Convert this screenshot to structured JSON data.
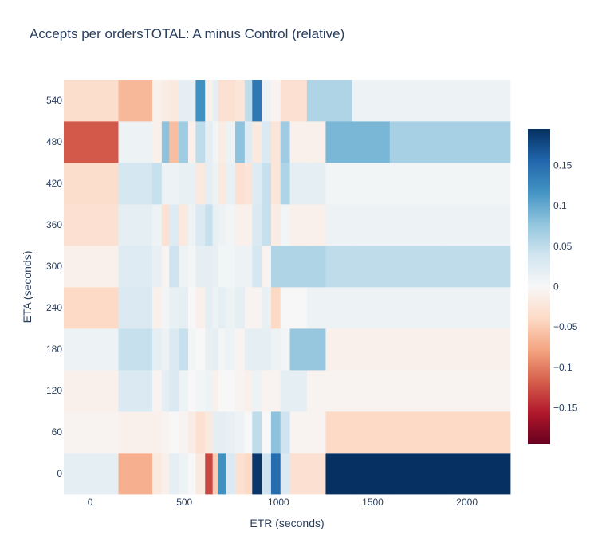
{
  "chart_data": {
    "type": "heatmap",
    "title": "Accepts per ordersTOTAL: A minus Control (relative)",
    "xlabel": "ETR (seconds)",
    "ylabel": "ETA (seconds)",
    "x_range": [
      -140,
      2230
    ],
    "x_ticks": [
      0,
      500,
      1000,
      1500,
      2000
    ],
    "y_ticks": [
      0,
      60,
      120,
      180,
      240,
      300,
      360,
      420,
      480,
      540
    ],
    "y_tick_labels": [
      "0",
      "60",
      "120",
      "180",
      "240",
      "300",
      "360",
      "420",
      "480",
      "540"
    ],
    "colorbar": {
      "range": [
        -0.195,
        0.195
      ],
      "ticks": [
        -0.15,
        -0.1,
        -0.05,
        0,
        0.05,
        0.1,
        0.15
      ],
      "tick_labels": [
        "−0.15",
        "−0.1",
        "−0.05",
        "0",
        "0.05",
        "0.1",
        "0.15"
      ],
      "colorscale": [
        "#67001f",
        "#b2182b",
        "#d6604d",
        "#f4a582",
        "#fddbc7",
        "#f7f7f7",
        "#d1e5f0",
        "#92c5de",
        "#4393c3",
        "#2166ac",
        "#053061"
      ]
    },
    "x_bin_edges": [
      -140,
      150,
      330,
      380,
      420,
      470,
      520,
      560,
      610,
      650,
      680,
      720,
      770,
      820,
      860,
      910,
      960,
      1010,
      1060,
      1150,
      1250,
      1390,
      1590,
      1890,
      2230
    ],
    "z": [
      [
        0.02,
        -0.07,
        -0.02,
        -0.01,
        0.02,
        0.01,
        0.0,
        -0.02,
        -0.13,
        -0.05,
        0.12,
        0.03,
        -0.03,
        -0.04,
        0.19,
        0.04,
        0.15,
        0.03,
        -0.03,
        -0.03,
        0.2,
        0.2,
        0.2,
        0.2
      ],
      [
        -0.005,
        -0.01,
        -0.01,
        -0.005,
        0.0,
        -0.005,
        -0.015,
        -0.03,
        -0.02,
        0.02,
        0.02,
        0.015,
        0.01,
        0.0,
        0.05,
        0.0,
        0.08,
        0.04,
        -0.005,
        -0.005,
        -0.04,
        -0.04,
        -0.04,
        -0.04
      ],
      [
        -0.01,
        0.03,
        -0.005,
        0.02,
        0.03,
        0.01,
        0.0,
        0.005,
        0.01,
        -0.01,
        0.0,
        0.0,
        -0.005,
        -0.01,
        0.01,
        -0.005,
        -0.005,
        0.02,
        0.02,
        -0.005,
        -0.005,
        -0.005,
        -0.005,
        -0.005
      ],
      [
        0.01,
        0.045,
        0.02,
        0.01,
        0.03,
        0.045,
        0.005,
        0.0,
        0.015,
        0.02,
        0.005,
        0.01,
        -0.005,
        0.02,
        0.02,
        0.02,
        0.01,
        0.005,
        0.075,
        0.075,
        -0.01,
        -0.01,
        -0.01,
        -0.01
      ],
      [
        -0.04,
        0.03,
        -0.01,
        0.005,
        0.015,
        0.02,
        0.0,
        -0.01,
        0.02,
        0.01,
        0.02,
        0.01,
        0.02,
        -0.005,
        -0.005,
        0.015,
        -0.04,
        0.0,
        0.0,
        0.01,
        0.01,
        0.01,
        0.01,
        0.01
      ],
      [
        -0.01,
        0.025,
        0.015,
        -0.005,
        0.04,
        0.01,
        0.005,
        0.02,
        0.02,
        0.015,
        0.005,
        0.005,
        0.01,
        0.01,
        0.035,
        -0.005,
        0.06,
        0.06,
        0.06,
        0.06,
        0.05,
        0.05,
        0.05,
        0.05
      ],
      [
        -0.03,
        0.02,
        0.01,
        -0.03,
        0.025,
        -0.02,
        0.01,
        0.03,
        0.045,
        0.015,
        0.01,
        0.005,
        -0.01,
        -0.01,
        0.03,
        0.045,
        -0.015,
        0.005,
        -0.01,
        -0.01,
        0.01,
        0.01,
        0.01,
        0.01
      ],
      [
        -0.035,
        0.035,
        0.045,
        0.01,
        0.01,
        0.015,
        0.015,
        -0.02,
        0.02,
        0.01,
        -0.02,
        0.015,
        -0.03,
        -0.025,
        0.025,
        0.045,
        -0.025,
        0.06,
        0.02,
        0.02,
        0.005,
        0.005,
        0.005,
        0.005
      ],
      [
        -0.12,
        0.01,
        -0.01,
        0.08,
        -0.06,
        0.07,
        -0.01,
        0.05,
        0.02,
        0.005,
        -0.015,
        0.01,
        0.08,
        0.025,
        -0.02,
        0.03,
        -0.025,
        0.07,
        -0.01,
        -0.01,
        0.09,
        0.09,
        0.065,
        0.065
      ],
      [
        -0.035,
        -0.065,
        -0.01,
        -0.015,
        -0.02,
        0.02,
        0.02,
        0.12,
        -0.01,
        0.02,
        -0.03,
        -0.03,
        -0.025,
        0.05,
        0.14,
        0.01,
        -0.005,
        -0.03,
        -0.03,
        0.06,
        0.06,
        0.01,
        0.01,
        0.01
      ]
    ]
  }
}
